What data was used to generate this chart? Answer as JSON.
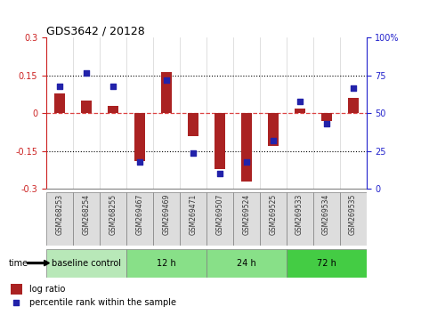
{
  "title": "GDS3642 / 20128",
  "samples": [
    "GSM268253",
    "GSM268254",
    "GSM268255",
    "GSM269467",
    "GSM269469",
    "GSM269471",
    "GSM269507",
    "GSM269524",
    "GSM269525",
    "GSM269533",
    "GSM269534",
    "GSM269535"
  ],
  "log_ratio": [
    0.08,
    0.05,
    0.03,
    -0.19,
    0.165,
    -0.09,
    -0.22,
    -0.27,
    -0.13,
    0.02,
    -0.03,
    0.06
  ],
  "percentile_rank": [
    68,
    77,
    68,
    18,
    72,
    24,
    10,
    18,
    32,
    58,
    43,
    67
  ],
  "ylim_left": [
    -0.3,
    0.3
  ],
  "ylim_right": [
    0,
    100
  ],
  "bar_color": "#aa2222",
  "dot_color": "#2222aa",
  "group_defs": [
    {
      "label": "baseline control",
      "start": 0,
      "end": 3,
      "color": "#b8e8b8"
    },
    {
      "label": "12 h",
      "start": 3,
      "end": 6,
      "color": "#88e088"
    },
    {
      "label": "24 h",
      "start": 6,
      "end": 9,
      "color": "#88e088"
    },
    {
      "label": "72 h",
      "start": 9,
      "end": 12,
      "color": "#44cc44"
    }
  ],
  "time_label": "time",
  "legend_log_ratio": "log ratio",
  "legend_percentile": "percentile rank within the sample",
  "zero_line_color": "#dd4444",
  "tick_label_left_color": "#cc2222",
  "tick_label_right_color": "#2222cc",
  "sample_bg_color": "#dddddd",
  "left_yticks": [
    -0.3,
    -0.15,
    0,
    0.15,
    0.3
  ],
  "left_yticklabels": [
    "-0.3",
    "-0.15",
    "0",
    "0.15",
    "0.3"
  ],
  "right_yticks": [
    0,
    25,
    50,
    75,
    100
  ],
  "right_yticklabels": [
    "0",
    "25",
    "50",
    "75",
    "100%"
  ]
}
